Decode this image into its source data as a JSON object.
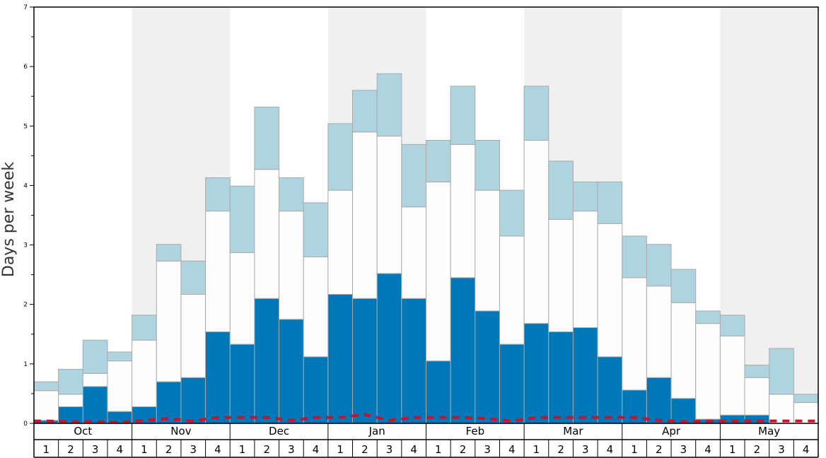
{
  "chart_data": {
    "type": "bar",
    "ylabel": "Days per week",
    "ylim": [
      0,
      7
    ],
    "yticks": [
      0,
      1,
      2,
      3,
      4,
      5,
      6,
      7
    ],
    "months": [
      "Oct",
      "Nov",
      "Dec",
      "Jan",
      "Feb",
      "Mar",
      "Apr",
      "May"
    ],
    "weeks_per_month": [
      "1",
      "2",
      "3",
      "4"
    ],
    "colors": {
      "dark_series": "#0077b6",
      "white_series": "#fdfdfd",
      "light_series": "#aed4e0",
      "line_series": "#d0102a",
      "shade_band": "#f0f0f0",
      "bar_edge": "#aaaaaa"
    },
    "stack_note": "Stacked bars: dark blue at bottom, white in middle, light blue on top; cumulative tops given per week",
    "series": [
      {
        "key": "dark",
        "values": [
          0.05,
          0.28,
          0.62,
          0.2,
          0.28,
          0.7,
          0.77,
          1.54,
          1.33,
          2.1,
          1.75,
          1.12,
          2.17,
          2.1,
          2.52,
          2.1,
          1.05,
          2.45,
          1.89,
          1.33,
          1.68,
          1.54,
          1.61,
          1.12,
          0.56,
          0.77,
          0.42,
          0.07,
          0.14,
          0.14,
          0.0,
          0.0
        ]
      },
      {
        "key": "white",
        "values": [
          0.5,
          0.21,
          0.22,
          0.85,
          1.12,
          2.03,
          1.4,
          2.03,
          1.54,
          2.17,
          1.82,
          1.68,
          1.75,
          2.8,
          2.31,
          1.54,
          3.01,
          2.24,
          2.03,
          1.82,
          3.08,
          1.89,
          1.96,
          2.24,
          1.89,
          1.54,
          1.61,
          1.61,
          1.33,
          0.63,
          0.49,
          0.35
        ]
      },
      {
        "key": "light",
        "values": [
          0.15,
          0.42,
          0.56,
          0.15,
          0.42,
          0.28,
          0.56,
          0.56,
          1.12,
          1.05,
          0.56,
          0.91,
          1.12,
          0.7,
          1.05,
          1.05,
          0.7,
          0.98,
          0.84,
          0.77,
          0.91,
          0.98,
          0.49,
          0.7,
          0.7,
          0.7,
          0.56,
          0.21,
          0.35,
          0.21,
          0.77,
          0.14
        ]
      }
    ],
    "line": {
      "key": "line",
      "style": "dashed",
      "values": [
        0.04,
        0.03,
        0.03,
        0.02,
        0.05,
        0.08,
        0.04,
        0.1,
        0.1,
        0.1,
        0.05,
        0.1,
        0.1,
        0.15,
        0.05,
        0.1,
        0.1,
        0.1,
        0.08,
        0.04,
        0.1,
        0.1,
        0.1,
        0.1,
        0.1,
        0.05,
        0.03,
        0.04,
        0.04,
        0.04,
        0.04,
        0.04
      ]
    },
    "grid": false
  }
}
